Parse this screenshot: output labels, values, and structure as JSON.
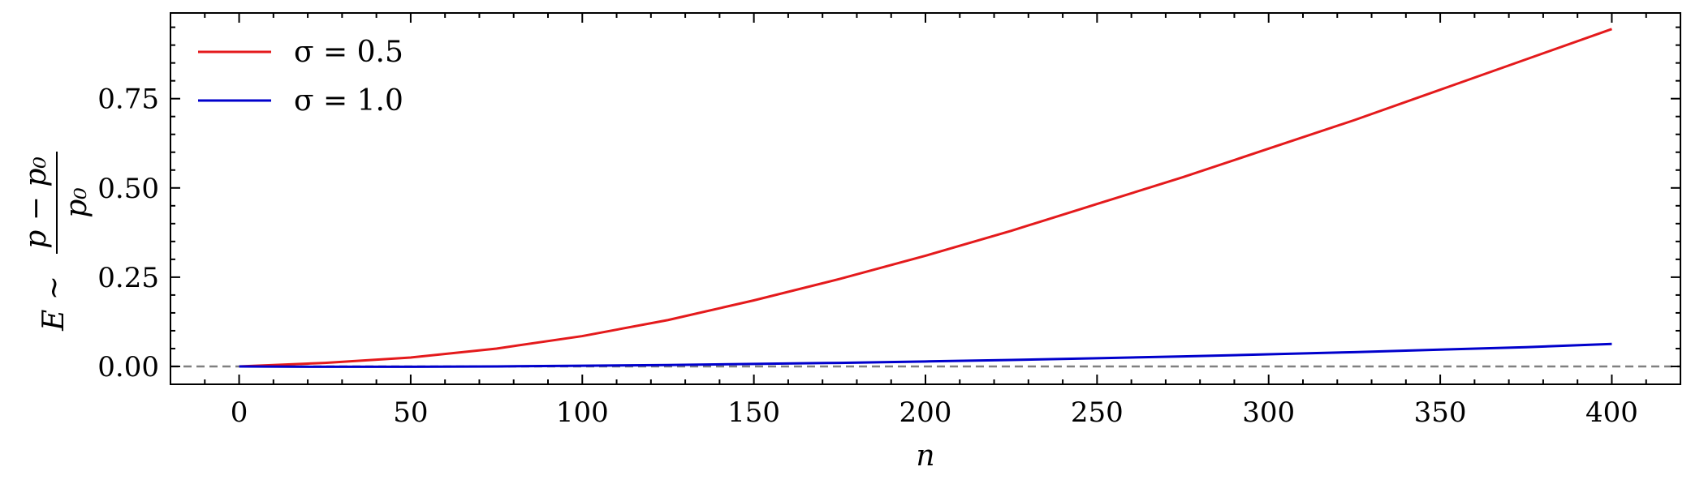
{
  "chart_data": {
    "type": "line",
    "xlabel": "n",
    "ylabel_parts": {
      "lhs": "E ~ ",
      "numerator": "p − p₀",
      "denominator": "p₀"
    },
    "xlim": [
      -20,
      420
    ],
    "ylim": [
      -0.05,
      0.99
    ],
    "xticks": [
      0,
      50,
      100,
      150,
      200,
      250,
      300,
      350,
      400
    ],
    "xtick_labels": [
      "0",
      "50",
      "100",
      "150",
      "200",
      "250",
      "300",
      "350",
      "400"
    ],
    "yticks": [
      0.0,
      0.25,
      0.5,
      0.75
    ],
    "ytick_labels": [
      "0.00",
      "0.25",
      "0.50",
      "0.75"
    ],
    "x_minor_step": 10,
    "y_minor_step": 0.05,
    "legend_position": "top-left",
    "reference_line": {
      "y": 0.0,
      "style": "dashed",
      "color": "#808080"
    },
    "series": [
      {
        "name": "σ = 0.5",
        "color": "#e41a1c",
        "x": [
          0,
          25,
          50,
          75,
          100,
          125,
          150,
          175,
          200,
          225,
          250,
          275,
          300,
          325,
          350,
          375,
          400
        ],
        "y": [
          0.0,
          0.01,
          0.025,
          0.05,
          0.085,
          0.13,
          0.185,
          0.245,
          0.31,
          0.38,
          0.455,
          0.53,
          0.61,
          0.69,
          0.775,
          0.86,
          0.945
        ]
      },
      {
        "name": "σ = 1.0",
        "color": "#0000cc",
        "x": [
          0,
          25,
          50,
          75,
          100,
          125,
          150,
          175,
          200,
          225,
          250,
          275,
          300,
          325,
          350,
          375,
          400
        ],
        "y": [
          0.0,
          -0.001,
          -0.001,
          0.0,
          0.002,
          0.004,
          0.007,
          0.01,
          0.014,
          0.018,
          0.023,
          0.028,
          0.034,
          0.04,
          0.047,
          0.054,
          0.063
        ]
      }
    ]
  }
}
